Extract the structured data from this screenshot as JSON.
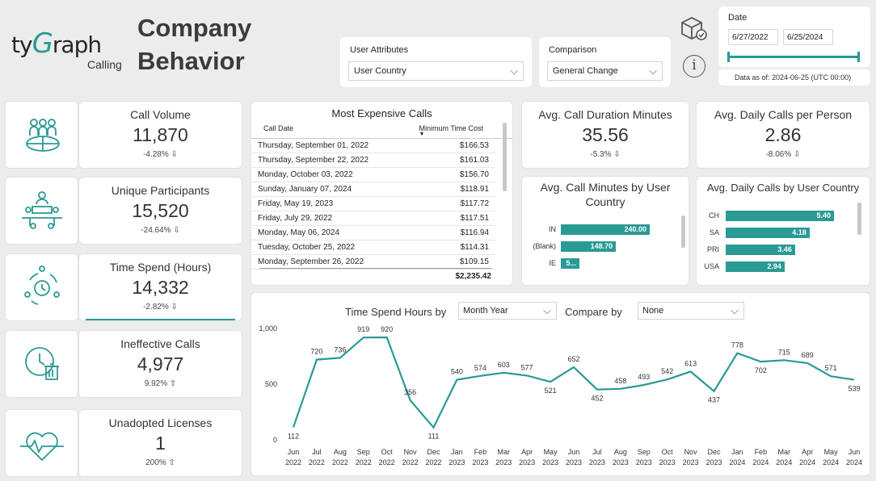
{
  "header": {
    "logo_text_pre": "ty",
    "logo_text_g": "G",
    "logo_text_post": "raph",
    "logo_sub": "Calling",
    "title_line1": "Company",
    "title_line2": "Behavior"
  },
  "filters": {
    "user_attributes_label": "User Attributes",
    "user_attributes_value": "User Country",
    "comparison_label": "Comparison",
    "comparison_value": "General Change",
    "date_label": "Date",
    "date_start": "6/27/2022",
    "date_end": "6/25/2024",
    "data_as_of": "Data as of: 2024-06-25 (UTC 00:00)"
  },
  "kpis": {
    "call_volume": {
      "title": "Call Volume",
      "value": "11,870",
      "delta": "-4.28% ⇩"
    },
    "unique_participants": {
      "title": "Unique Participants",
      "value": "15,520",
      "delta": "-24.64% ⇩"
    },
    "time_spend": {
      "title": "Time Spend (Hours)",
      "value": "14,332",
      "delta": "-2.82% ⇩"
    },
    "ineffective_calls": {
      "title": "Ineffective Calls",
      "value": "4,977",
      "delta": "9.92% ⇧"
    },
    "unadopted_licenses": {
      "title": "Unadopted Licenses",
      "value": "1",
      "delta": "200% ⇧"
    },
    "avg_call_duration": {
      "title": "Avg. Call Duration Minutes",
      "value": "35.56",
      "delta": "-5.3% ⇩"
    },
    "avg_daily_calls": {
      "title": "Avg. Daily Calls per Person",
      "value": "2.86",
      "delta": "-8.06% ⇩"
    }
  },
  "expensive_calls": {
    "title": "Most Expensive Calls",
    "col_date": "Call Date",
    "col_cost": "Minimum Time Cost",
    "rows": [
      {
        "date": "Thursday, September 01, 2022",
        "cost": "$166.53"
      },
      {
        "date": "Thursday, September 22, 2022",
        "cost": "$161.03"
      },
      {
        "date": "Monday, October 03, 2022",
        "cost": "$156.70"
      },
      {
        "date": "Sunday, January 07, 2024",
        "cost": "$118.91"
      },
      {
        "date": "Friday, May 19, 2023",
        "cost": "$117.72"
      },
      {
        "date": "Friday, July 29, 2022",
        "cost": "$117.51"
      },
      {
        "date": "Monday, May 06, 2024",
        "cost": "$116.94"
      },
      {
        "date": "Tuesday, October 25, 2022",
        "cost": "$114.31"
      },
      {
        "date": "Monday, September 26, 2022",
        "cost": "$109.15"
      }
    ],
    "total": "$2,235.42"
  },
  "chart_data": [
    {
      "type": "bar",
      "title": "Avg. Call Minutes by User Country",
      "categories": [
        "IN",
        "(Blank)",
        "IE"
      ],
      "values": [
        240.0,
        148.7,
        50
      ],
      "labels": [
        "240.00",
        "148.70",
        "5..."
      ]
    },
    {
      "type": "bar",
      "title": "Avg. Daily Calls by User Country",
      "categories": [
        "CH",
        "SA",
        "PRI",
        "USA"
      ],
      "values": [
        5.4,
        4.18,
        3.46,
        2.94
      ],
      "labels": [
        "5.40",
        "4.18",
        "3.46",
        "2.94"
      ]
    },
    {
      "type": "line",
      "title": "Time Spend Hours by",
      "group_by_value": "Month Year",
      "compare_label": "Compare by",
      "compare_value": "None",
      "categories": [
        "Jun 2022",
        "Jul 2022",
        "Aug 2022",
        "Sep 2022",
        "Oct 2022",
        "Nov 2022",
        "Dec 2022",
        "Jan 2023",
        "Feb 2023",
        "Mar 2023",
        "Apr 2023",
        "May 2023",
        "Jun 2023",
        "Jul 2023",
        "Aug 2023",
        "Sep 2023",
        "Oct 2023",
        "Nov 2023",
        "Dec 2023",
        "Jan 2024",
        "Feb 2024",
        "Mar 2024",
        "Apr 2024",
        "May 2024",
        "Jun 2024"
      ],
      "values": [
        112,
        720,
        736,
        919,
        920,
        356,
        111,
        540,
        574,
        603,
        577,
        521,
        652,
        452,
        458,
        493,
        542,
        613,
        437,
        778,
        702,
        715,
        689,
        571,
        539
      ],
      "yticks": [
        "0",
        "500",
        "1,000"
      ],
      "ylim": [
        0,
        1000
      ],
      "color": "#2a9a94"
    }
  ]
}
